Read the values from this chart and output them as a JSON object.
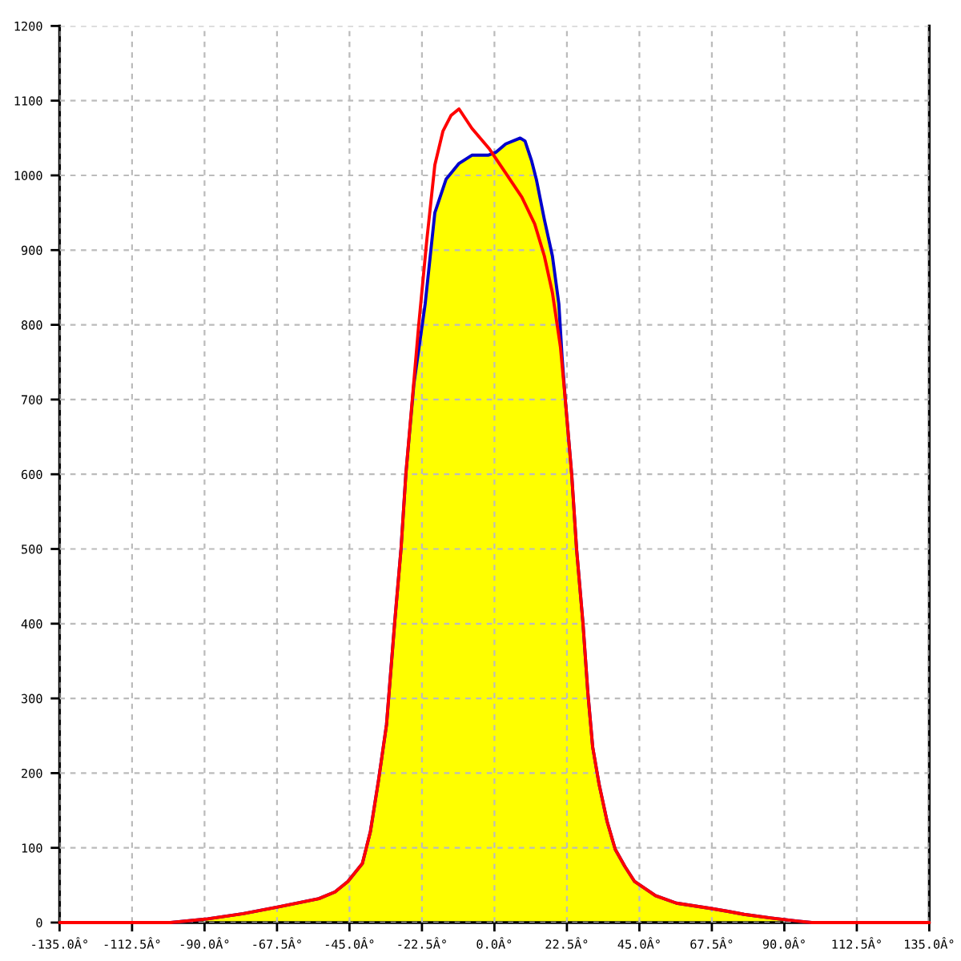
{
  "chart_data": {
    "type": "line",
    "xlim": [
      -135,
      135
    ],
    "xticks": [
      {
        "value": -135,
        "label": "-135.0Â°"
      },
      {
        "value": -112.5,
        "label": "-112.5Â°"
      },
      {
        "value": -90,
        "label": "-90.0Â°"
      },
      {
        "value": -67.5,
        "label": "-67.5Â°"
      },
      {
        "value": -45,
        "label": "-45.0Â°"
      },
      {
        "value": -22.5,
        "label": "-22.5Â°"
      },
      {
        "value": 0,
        "label": "0.0Â°"
      },
      {
        "value": 22.5,
        "label": "22.5Â°"
      },
      {
        "value": 45,
        "label": "45.0Â°"
      },
      {
        "value": 67.5,
        "label": "67.5Â°"
      },
      {
        "value": 90,
        "label": "90.0Â°"
      },
      {
        "value": 112.5,
        "label": "112.5Â°"
      },
      {
        "value": 135,
        "label": "135.0Â°"
      }
    ],
    "ylim": [
      0,
      1200
    ],
    "yticks": [
      0,
      100,
      200,
      300,
      400,
      500,
      600,
      700,
      800,
      900,
      1000,
      1100,
      1200
    ],
    "grid": true,
    "series": [
      {
        "type": "area",
        "color": "#ffff00",
        "x": [
          -100.5,
          -89,
          -78,
          -67,
          -54.5,
          -49.5,
          -45.5,
          -41,
          -38.5,
          -36,
          -33.5,
          -31,
          -29,
          -27.5,
          -25,
          -21.5,
          -18.5,
          -15,
          -11,
          -7,
          -2,
          0.5,
          3.5,
          8,
          9.5,
          11.5,
          13,
          15.5,
          18,
          20,
          21,
          22,
          24,
          25.5,
          27.5,
          29,
          30.5,
          32.5,
          35,
          37.5,
          40.5,
          43.5,
          50,
          56.5,
          67,
          72.5,
          77.5,
          86,
          94,
          98.5
        ],
        "values": [
          0,
          5,
          12,
          21,
          32,
          41,
          55,
          79,
          122,
          190,
          265,
          400,
          500,
          600,
          721,
          828,
          950,
          995,
          1016,
          1027,
          1027,
          1031,
          1042,
          1050,
          1046,
          1020,
          995,
          941,
          892,
          828,
          757,
          700,
          599,
          500,
          400,
          308,
          235,
          185,
          135,
          98,
          75,
          55,
          36,
          26,
          19,
          15,
          11,
          6,
          2,
          0
        ]
      },
      {
        "color": "#ff0000",
        "x": [
          -135,
          -100.5,
          -89,
          -78,
          -67,
          -54.5,
          -49.5,
          -45.5,
          -41,
          -38.5,
          -36,
          -33.5,
          -31,
          -29,
          -27.5,
          -25.5,
          -23.5,
          -21,
          -18.5,
          -16,
          -13.5,
          -11,
          -7,
          -1.5,
          3.5,
          8.5,
          12.5,
          15.5,
          18,
          20.5,
          22,
          24,
          25.5,
          27.5,
          29,
          30.5,
          32.5,
          35,
          37.5,
          40.5,
          43.5,
          50,
          56.5,
          67,
          72.5,
          77.5,
          86,
          94,
          98.5,
          135
        ],
        "values": [
          0,
          0,
          5,
          12,
          21,
          32,
          41,
          55,
          79,
          122,
          190,
          265,
          400,
          500,
          600,
          700,
          800,
          913,
          1014,
          1059,
          1080,
          1089,
          1063,
          1035,
          1003,
          971,
          935,
          892,
          843,
          770,
          700,
          599,
          500,
          400,
          308,
          235,
          185,
          135,
          98,
          75,
          55,
          36,
          26,
          19,
          15,
          11,
          6,
          2,
          0,
          0
        ]
      }
    ]
  }
}
